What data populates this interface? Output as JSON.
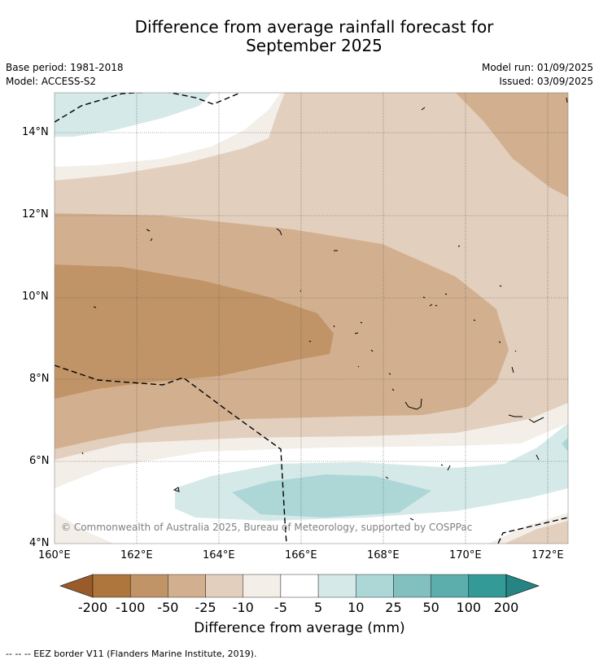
{
  "title_line1": "Difference from average rainfall forecast for",
  "title_line2": "September 2025",
  "base_period": "Base period: 1981-2018",
  "model": "Model: ACCESS-S2",
  "model_run": "Model run: 01/09/2025",
  "issued": "Issued: 03/09/2025",
  "copyright": "© Commonwealth of Australia 2025, Bureau of Meteorology, supported by COSPPac",
  "x_ticks": [
    "160°E",
    "162°E",
    "164°E",
    "166°E",
    "168°E",
    "170°E",
    "172°E"
  ],
  "y_ticks": [
    "14°N",
    "12°N",
    "10°N",
    "8°N",
    "6°N",
    "4°N"
  ],
  "colorbar": {
    "ticks": [
      "-200",
      "-100",
      "-50",
      "-25",
      "-10",
      "-5",
      "5",
      "10",
      "25",
      "50",
      "100",
      "200"
    ],
    "colors": [
      "#9a5b2a",
      "#ae763c",
      "#c09467",
      "#d2b08f",
      "#e3cfbd",
      "#f3eee7",
      "#ffffff",
      "#d4e9e8",
      "#acd7d6",
      "#82c0bf",
      "#5caeac",
      "#339a98",
      "#268584"
    ],
    "label": "Difference from average (mm)"
  },
  "footer": "--  --  -- EEZ border V11 (Flanders Marine Institute, 2019)."
}
